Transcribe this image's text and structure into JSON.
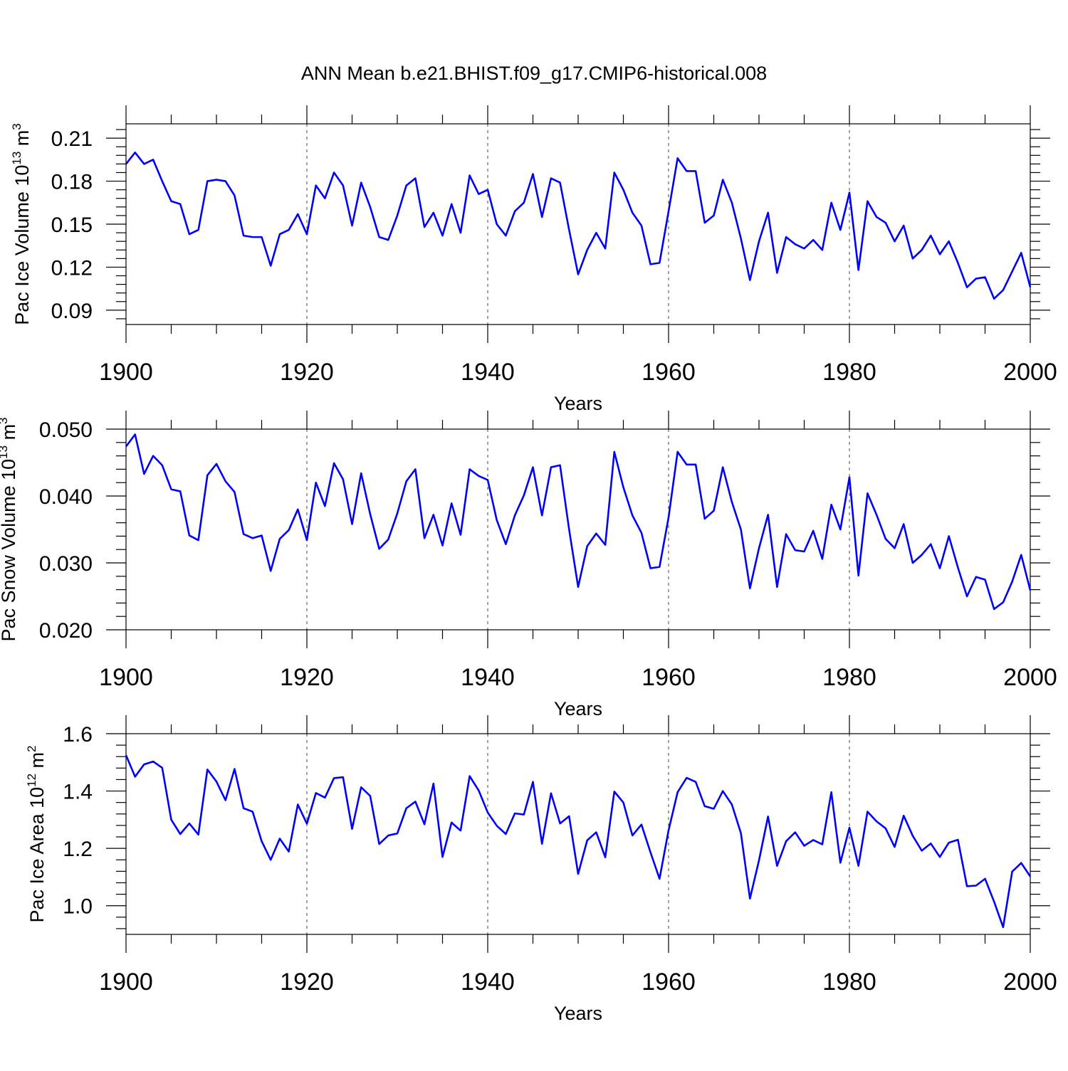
{
  "figure": {
    "title": "ANN Mean b.e21.BHIST.f09_g17.CMIP6-historical.008"
  },
  "chart_data": [
    {
      "type": "line",
      "ylabel_main": "Pac Ice Volume 10",
      "ylabel_exp": "13",
      "ylabel_unit": " m",
      "ylabel_unit_exp": "3",
      "xlabel": "Years",
      "xlim": [
        1900,
        2000
      ],
      "ylim": [
        0.08,
        0.22
      ],
      "xticks": [
        1900,
        1920,
        1940,
        1960,
        1980,
        2000
      ],
      "xtick_labels": [
        "1900",
        "1920",
        "1940",
        "1960",
        "1980",
        "2000"
      ],
      "yticks": [
        0.09,
        0.12,
        0.15,
        0.18,
        0.21
      ],
      "ytick_labels": [
        "0.09",
        "0.12",
        "0.15",
        "0.18",
        "0.21"
      ],
      "reference_lines_x": [
        1920,
        1940,
        1960,
        1980
      ],
      "series": [
        {
          "name": "Pac Ice Volume",
          "color": "#0000ff",
          "x_start": 1900,
          "values": [
            0.192,
            0.2,
            0.192,
            0.195,
            0.18,
            0.166,
            0.164,
            0.143,
            0.146,
            0.18,
            0.181,
            0.18,
            0.17,
            0.142,
            0.141,
            0.141,
            0.121,
            0.143,
            0.146,
            0.157,
            0.143,
            0.177,
            0.168,
            0.186,
            0.177,
            0.149,
            0.179,
            0.162,
            0.141,
            0.139,
            0.156,
            0.177,
            0.182,
            0.148,
            0.158,
            0.142,
            0.164,
            0.144,
            0.184,
            0.171,
            0.174,
            0.15,
            0.142,
            0.159,
            0.165,
            0.185,
            0.155,
            0.182,
            0.179,
            0.146,
            0.115,
            0.132,
            0.144,
            0.133,
            0.186,
            0.174,
            0.158,
            0.149,
            0.122,
            0.123,
            0.159,
            0.196,
            0.187,
            0.187,
            0.151,
            0.156,
            0.181,
            0.165,
            0.14,
            0.111,
            0.138,
            0.158,
            0.116,
            0.141,
            0.136,
            0.133,
            0.139,
            0.132,
            0.165,
            0.146,
            0.172,
            0.118,
            0.166,
            0.155,
            0.151,
            0.138,
            0.149,
            0.126,
            0.132,
            0.142,
            0.129,
            0.138,
            0.123,
            0.106,
            0.112,
            0.113,
            0.098,
            0.104,
            0.117,
            0.13,
            0.106
          ]
        }
      ]
    },
    {
      "type": "line",
      "ylabel_main": "Pac Snow Volume 10",
      "ylabel_exp": "13",
      "ylabel_unit": " m",
      "ylabel_unit_exp": "3",
      "xlabel": "Years",
      "xlim": [
        1900,
        2000
      ],
      "ylim": [
        0.02,
        0.05
      ],
      "xticks": [
        1900,
        1920,
        1940,
        1960,
        1980,
        2000
      ],
      "xtick_labels": [
        "1900",
        "1920",
        "1940",
        "1960",
        "1980",
        "2000"
      ],
      "yticks": [
        0.02,
        0.03,
        0.04,
        0.05
      ],
      "ytick_labels": [
        "0.020",
        "0.030",
        "0.040",
        "0.050"
      ],
      "reference_lines_x": [
        1920,
        1940,
        1960,
        1980
      ],
      "series": [
        {
          "name": "Pac Snow Volume",
          "color": "#0000ff",
          "x_start": 1900,
          "values": [
            0.0474,
            0.0492,
            0.0433,
            0.046,
            0.0446,
            0.041,
            0.0407,
            0.0341,
            0.0334,
            0.0431,
            0.0448,
            0.0422,
            0.0406,
            0.0343,
            0.0337,
            0.0341,
            0.0288,
            0.0336,
            0.0349,
            0.038,
            0.0334,
            0.042,
            0.0385,
            0.0449,
            0.0425,
            0.0358,
            0.0434,
            0.0373,
            0.0321,
            0.0335,
            0.0374,
            0.0422,
            0.044,
            0.0337,
            0.0372,
            0.0326,
            0.0389,
            0.0342,
            0.044,
            0.043,
            0.0424,
            0.0364,
            0.0328,
            0.0371,
            0.0401,
            0.0443,
            0.0371,
            0.0443,
            0.0446,
            0.035,
            0.0264,
            0.0325,
            0.0344,
            0.0327,
            0.0466,
            0.0413,
            0.0371,
            0.0345,
            0.0292,
            0.0294,
            0.0368,
            0.0466,
            0.0447,
            0.0447,
            0.0366,
            0.0378,
            0.0443,
            0.0391,
            0.035,
            0.0262,
            0.0322,
            0.0372,
            0.0264,
            0.0343,
            0.0319,
            0.0317,
            0.0348,
            0.0306,
            0.0387,
            0.035,
            0.0428,
            0.0281,
            0.0404,
            0.0372,
            0.0336,
            0.0322,
            0.0358,
            0.03,
            0.0312,
            0.0328,
            0.0292,
            0.034,
            0.0293,
            0.025,
            0.0279,
            0.0275,
            0.0231,
            0.0241,
            0.0272,
            0.0312,
            0.0259
          ]
        }
      ]
    },
    {
      "type": "line",
      "ylabel_main": "Pac Ice Area 10",
      "ylabel_exp": "12",
      "ylabel_unit": " m",
      "ylabel_unit_exp": "2",
      "xlabel": "Years",
      "xlim": [
        1900,
        2000
      ],
      "ylim": [
        0.9,
        1.6
      ],
      "xticks": [
        1900,
        1920,
        1940,
        1960,
        1980,
        2000
      ],
      "xtick_labels": [
        "1900",
        "1920",
        "1940",
        "1960",
        "1980",
        "2000"
      ],
      "yticks": [
        1.0,
        1.2,
        1.4,
        1.6
      ],
      "ytick_labels": [
        "1.0",
        "1.2",
        "1.4",
        "1.6"
      ],
      "reference_lines_x": [
        1920,
        1940,
        1960,
        1980
      ],
      "series": [
        {
          "name": "Pac Ice Area",
          "color": "#0000ff",
          "x_start": 1900,
          "values": [
            1.525,
            1.45,
            1.493,
            1.503,
            1.481,
            1.3,
            1.25,
            1.287,
            1.248,
            1.475,
            1.433,
            1.368,
            1.477,
            1.34,
            1.328,
            1.225,
            1.16,
            1.234,
            1.189,
            1.353,
            1.286,
            1.393,
            1.377,
            1.445,
            1.448,
            1.268,
            1.413,
            1.383,
            1.215,
            1.245,
            1.252,
            1.34,
            1.363,
            1.284,
            1.426,
            1.17,
            1.29,
            1.262,
            1.452,
            1.402,
            1.325,
            1.279,
            1.25,
            1.322,
            1.318,
            1.432,
            1.216,
            1.392,
            1.287,
            1.312,
            1.111,
            1.228,
            1.256,
            1.169,
            1.398,
            1.36,
            1.245,
            1.283,
            1.186,
            1.094,
            1.263,
            1.396,
            1.446,
            1.432,
            1.347,
            1.338,
            1.4,
            1.353,
            1.253,
            1.025,
            1.158,
            1.311,
            1.139,
            1.225,
            1.256,
            1.209,
            1.229,
            1.214,
            1.396,
            1.15,
            1.272,
            1.139,
            1.328,
            1.294,
            1.27,
            1.205,
            1.314,
            1.244,
            1.192,
            1.217,
            1.17,
            1.22,
            1.23,
            1.068,
            1.07,
            1.094,
            1.014,
            0.925,
            1.119,
            1.149,
            1.102
          ]
        }
      ]
    }
  ]
}
